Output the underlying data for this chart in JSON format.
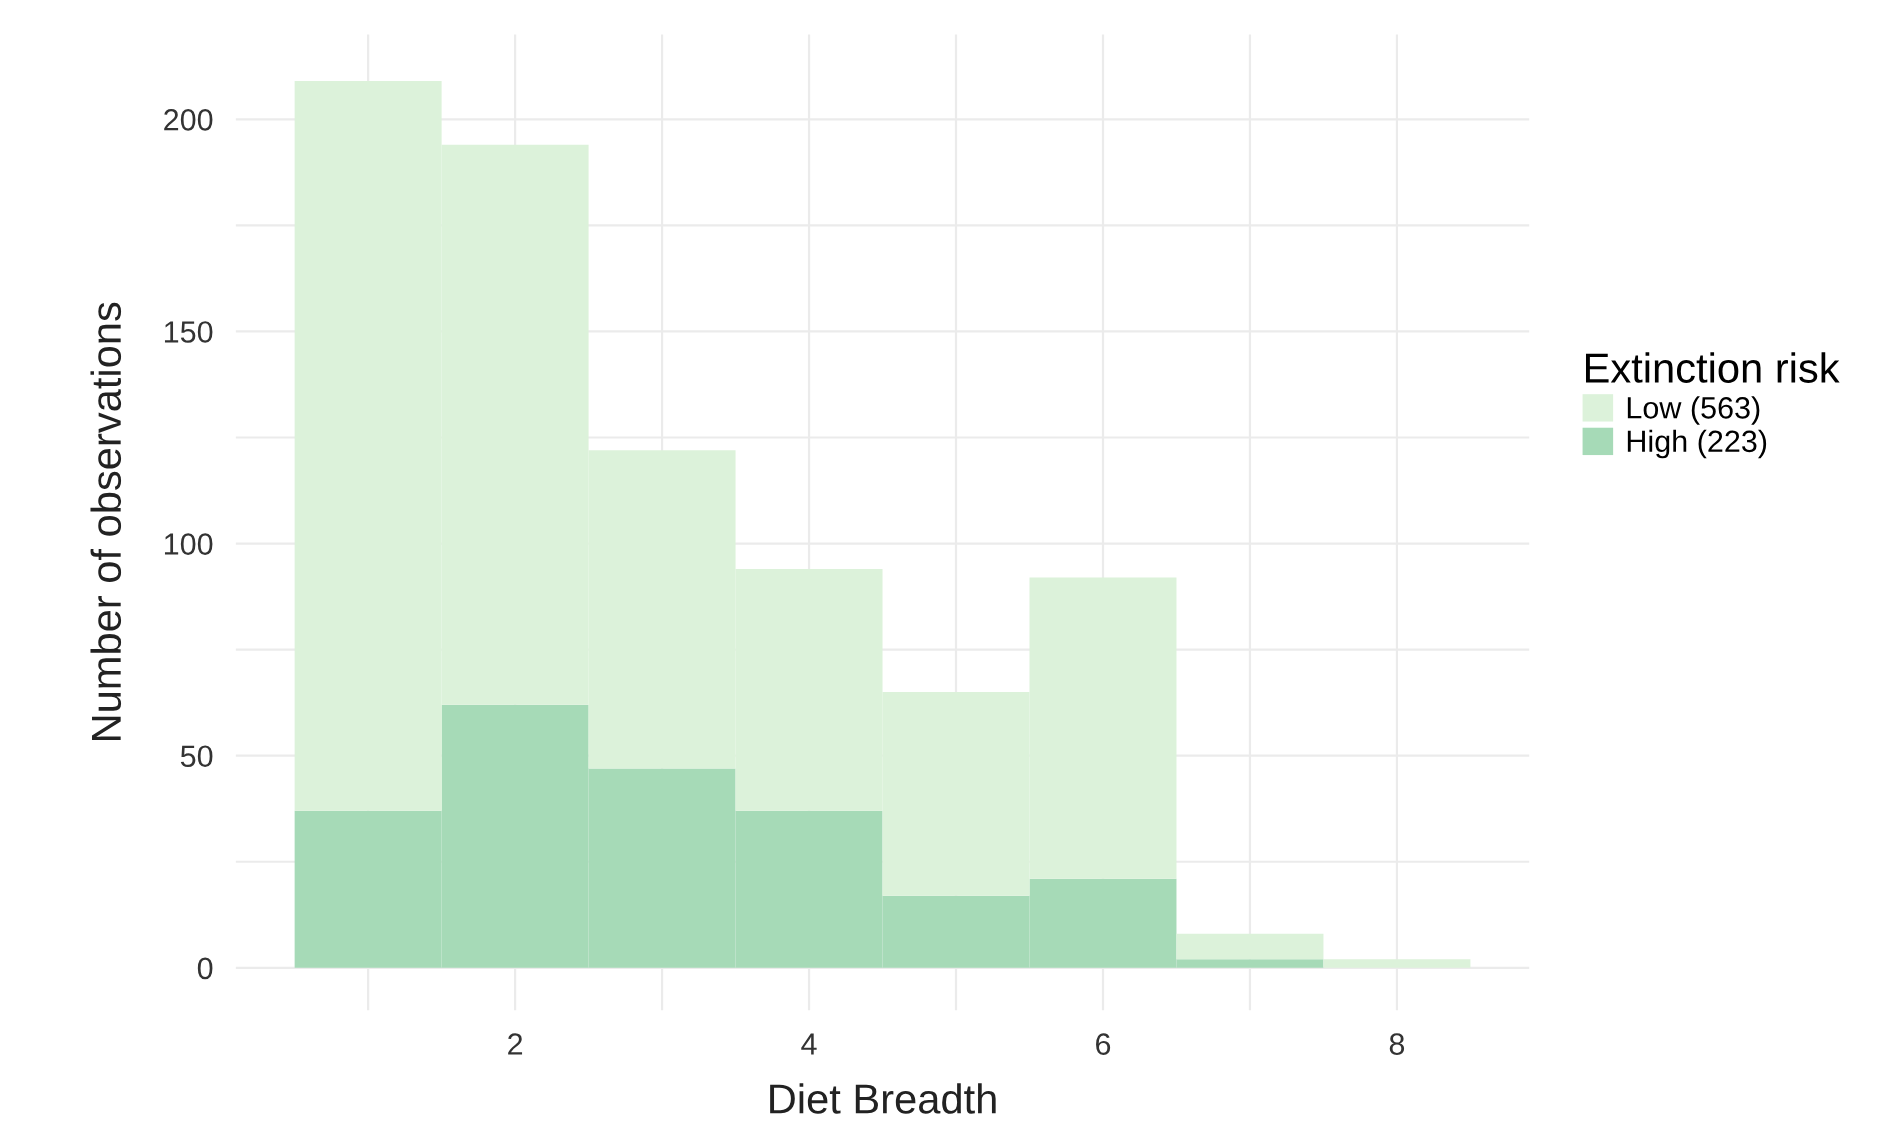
{
  "chart_data": {
    "type": "bar",
    "xlabel": "Diet Breadth",
    "ylabel": "Number of observations",
    "legend_title": "Extinction risk",
    "x": [
      1,
      2,
      3,
      4,
      5,
      6,
      7,
      8
    ],
    "stacked": true,
    "series": [
      {
        "name": "High (223)",
        "color": "#a6dab7",
        "values": [
          37,
          62,
          47,
          37,
          17,
          21,
          2,
          0
        ]
      },
      {
        "name": "Low (563)",
        "color": "#dcf2da",
        "values": [
          172,
          132,
          75,
          57,
          48,
          71,
          6,
          2
        ]
      }
    ],
    "xlim": [
      0.1,
      8.9
    ],
    "ylim": [
      -10,
      220
    ],
    "xticks": [
      {
        "value": 1,
        "label": null
      },
      2,
      {
        "value": 3,
        "label": null
      },
      4,
      {
        "value": 5,
        "label": null
      },
      6,
      {
        "value": 7,
        "label": null
      },
      8
    ],
    "yticks": [
      0,
      {
        "value": 25,
        "label": null
      },
      50,
      {
        "value": 75,
        "label": null
      },
      100,
      {
        "value": 125,
        "label": null
      },
      150,
      {
        "value": 175,
        "label": null
      },
      200
    ],
    "grid": true,
    "legend": "right"
  }
}
